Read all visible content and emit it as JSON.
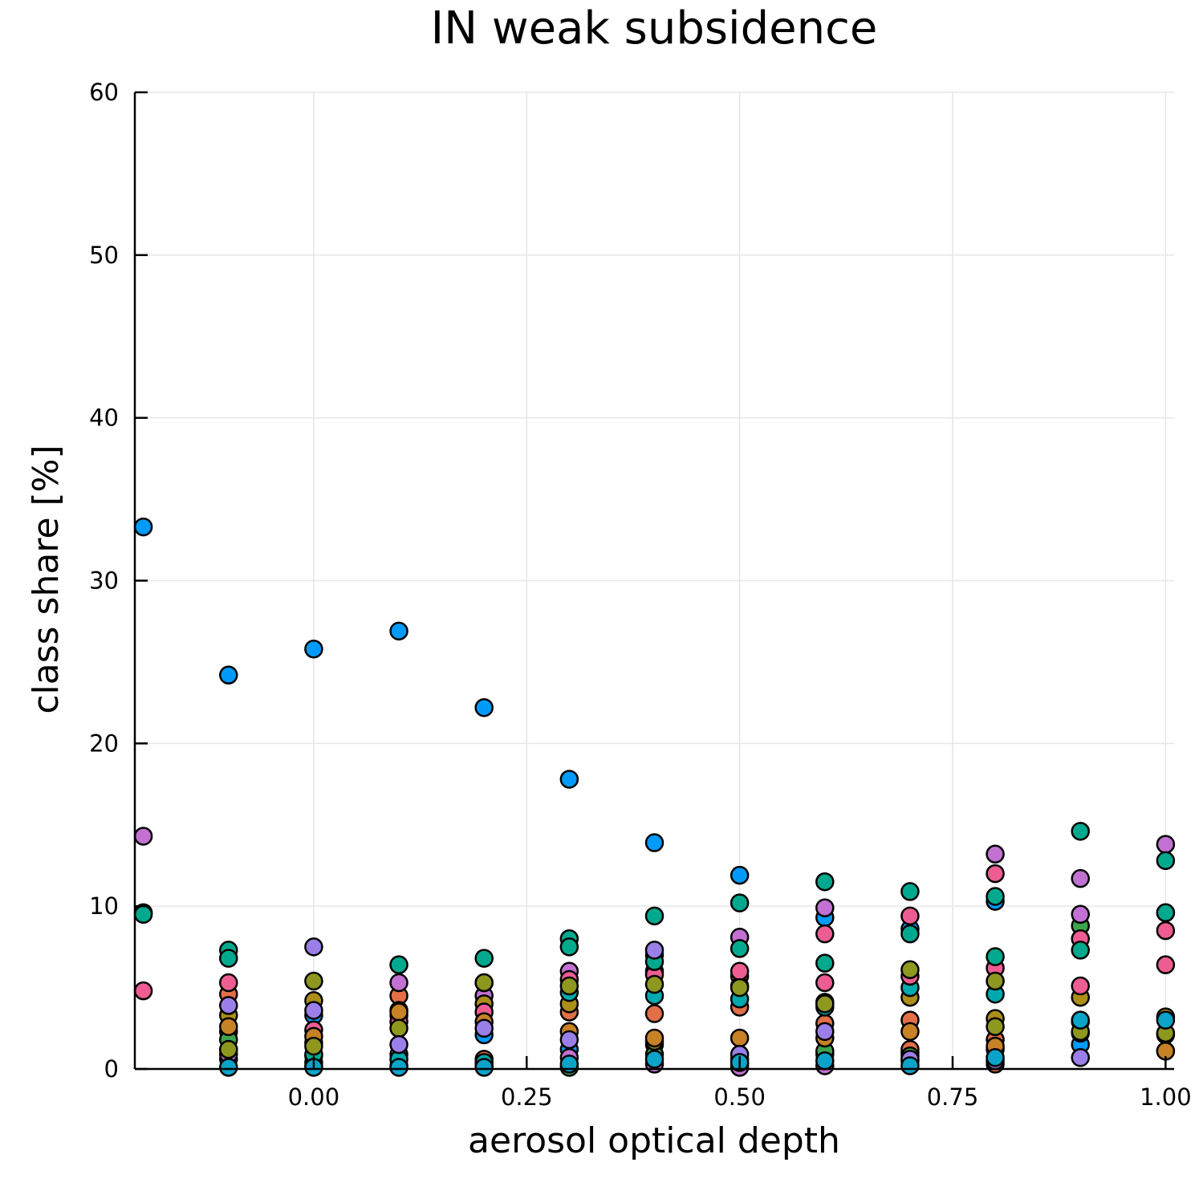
{
  "chart_data": {
    "type": "scatter",
    "title": "IN weak subsidence",
    "xlabel": "aerosol optical depth",
    "ylabel": "class share [%]",
    "xlim": [
      -0.21,
      1.01
    ],
    "ylim": [
      0,
      60
    ],
    "xticks": [
      0.0,
      0.25,
      0.5,
      0.75,
      1.0
    ],
    "xtick_labels": [
      "0.00",
      "0.25",
      "0.50",
      "0.75",
      "1.00"
    ],
    "yticks": [
      0,
      10,
      20,
      30,
      40,
      50,
      60
    ],
    "ytick_labels": [
      "0",
      "10",
      "20",
      "30",
      "40",
      "50",
      "60"
    ],
    "grid": true,
    "legend": "none",
    "series": [
      {
        "color": "#009AFA",
        "points": [
          [
            -0.2,
            33.3
          ],
          [
            -0.1,
            24.2
          ],
          [
            0.0,
            25.8
          ],
          [
            0.1,
            26.9
          ],
          [
            0.2,
            22.2
          ],
          [
            0.3,
            17.8
          ],
          [
            0.4,
            13.9
          ],
          [
            0.5,
            11.9
          ],
          [
            0.6,
            9.3
          ],
          [
            0.7,
            8.6
          ],
          [
            0.8,
            10.3
          ],
          [
            -0.1,
            0.6
          ],
          [
            0.0,
            3.3
          ],
          [
            0.1,
            0.2
          ],
          [
            0.2,
            2.1
          ],
          [
            0.3,
            1.2
          ],
          [
            0.4,
            1.5
          ],
          [
            0.5,
            0.6
          ],
          [
            0.6,
            0.9
          ],
          [
            0.7,
            1.0
          ],
          [
            0.9,
            1.5
          ]
        ]
      },
      {
        "color": "#E26F46",
        "points": [
          [
            -0.1,
            4.6
          ],
          [
            -0.1,
            2.3
          ],
          [
            0.0,
            1.6
          ],
          [
            0.1,
            4.5
          ],
          [
            0.1,
            3.3
          ],
          [
            0.2,
            0.6
          ],
          [
            0.3,
            3.5
          ],
          [
            0.4,
            3.4
          ],
          [
            0.4,
            6.0
          ],
          [
            0.5,
            3.8
          ],
          [
            0.5,
            5.7
          ],
          [
            0.6,
            2.8
          ],
          [
            0.7,
            3.0
          ],
          [
            0.7,
            1.2
          ],
          [
            0.8,
            0.3
          ],
          [
            0.8,
            1.8
          ],
          [
            1.0,
            1.1
          ]
        ]
      },
      {
        "color": "#3DA44D",
        "points": [
          [
            -0.1,
            1.8
          ],
          [
            0.0,
            0.8
          ],
          [
            0.1,
            0.9
          ],
          [
            0.2,
            0.2
          ],
          [
            0.3,
            0.1
          ],
          [
            0.4,
            0.9
          ],
          [
            0.5,
            0.3
          ],
          [
            0.6,
            1.1
          ],
          [
            0.7,
            0.8
          ],
          [
            0.8,
            1.2
          ],
          [
            0.9,
            8.8
          ],
          [
            1.0,
            2.1
          ]
        ]
      },
      {
        "color": "#C271D2",
        "points": [
          [
            -0.2,
            14.3
          ],
          [
            -0.1,
            0.9
          ],
          [
            0.0,
            0.4
          ],
          [
            0.1,
            5.3
          ],
          [
            0.2,
            4.5
          ],
          [
            0.3,
            6.0
          ],
          [
            0.3,
            0.7
          ],
          [
            0.4,
            0.3
          ],
          [
            0.5,
            8.1
          ],
          [
            0.5,
            0.1
          ],
          [
            0.6,
            9.9
          ],
          [
            0.6,
            0.2
          ],
          [
            0.7,
            0.5
          ],
          [
            0.8,
            13.2
          ],
          [
            0.9,
            11.7
          ],
          [
            0.9,
            9.5
          ],
          [
            1.0,
            13.8
          ]
        ]
      },
      {
        "color": "#AC8E18",
        "points": [
          [
            -0.1,
            3.3
          ],
          [
            0.0,
            4.2
          ],
          [
            0.1,
            3.6
          ],
          [
            0.2,
            4.0
          ],
          [
            0.3,
            4.0
          ],
          [
            0.4,
            1.7
          ],
          [
            0.5,
            5.1
          ],
          [
            0.6,
            4.1
          ],
          [
            0.7,
            4.4
          ],
          [
            0.8,
            3.1
          ],
          [
            0.9,
            4.4
          ],
          [
            1.0,
            3.2
          ]
        ]
      },
      {
        "color": "#00A9AD",
        "points": [
          [
            -0.2,
            9.6
          ],
          [
            -0.1,
            1.2
          ],
          [
            0.0,
            0.2
          ],
          [
            0.1,
            0.6
          ],
          [
            0.2,
            0.4
          ],
          [
            0.3,
            4.7
          ],
          [
            0.4,
            4.5
          ],
          [
            0.5,
            4.3
          ],
          [
            0.6,
            3.8
          ],
          [
            0.7,
            5.0
          ],
          [
            0.8,
            4.6
          ],
          [
            0.9,
            2.9
          ],
          [
            1.0,
            9.6
          ]
        ]
      },
      {
        "color": "#ED5D92",
        "points": [
          [
            -0.2,
            4.8
          ],
          [
            -0.1,
            5.3
          ],
          [
            0.0,
            2.4
          ],
          [
            0.1,
            2.9
          ],
          [
            0.2,
            3.5
          ],
          [
            0.3,
            5.5
          ],
          [
            0.4,
            7.0
          ],
          [
            0.4,
            5.8
          ],
          [
            0.5,
            6.0
          ],
          [
            0.6,
            8.3
          ],
          [
            0.6,
            5.3
          ],
          [
            0.7,
            9.4
          ],
          [
            0.7,
            5.7
          ],
          [
            0.8,
            12.0
          ],
          [
            0.8,
            6.2
          ],
          [
            0.9,
            8.0
          ],
          [
            0.9,
            5.1
          ],
          [
            1.0,
            8.5
          ],
          [
            1.0,
            6.4
          ]
        ]
      },
      {
        "color": "#C68225",
        "points": [
          [
            -0.1,
            2.6
          ],
          [
            0.0,
            2.0
          ],
          [
            0.1,
            3.5
          ],
          [
            0.2,
            2.9
          ],
          [
            0.3,
            2.3
          ],
          [
            0.4,
            1.9
          ],
          [
            0.5,
            1.9
          ],
          [
            0.6,
            1.9
          ],
          [
            0.7,
            2.3
          ],
          [
            0.8,
            1.4
          ],
          [
            0.9,
            2.2
          ],
          [
            1.0,
            1.1
          ]
        ]
      },
      {
        "color": "#00A98D",
        "points": [
          [
            -0.2,
            9.5
          ],
          [
            -0.1,
            7.3
          ],
          [
            -0.1,
            6.8
          ],
          [
            0.0,
            0.9
          ],
          [
            0.1,
            6.4
          ],
          [
            0.2,
            6.8
          ],
          [
            0.2,
            5.3
          ],
          [
            0.3,
            8.0
          ],
          [
            0.3,
            7.5
          ],
          [
            0.4,
            9.4
          ],
          [
            0.4,
            6.6
          ],
          [
            0.5,
            10.2
          ],
          [
            0.5,
            7.4
          ],
          [
            0.6,
            11.5
          ],
          [
            0.6,
            6.5
          ],
          [
            0.7,
            10.9
          ],
          [
            0.7,
            8.3
          ],
          [
            0.8,
            10.6
          ],
          [
            0.8,
            6.9
          ],
          [
            0.9,
            14.6
          ],
          [
            0.9,
            7.3
          ],
          [
            1.0,
            12.8
          ],
          [
            1.0,
            9.6
          ]
        ]
      },
      {
        "color": "#8E971E",
        "points": [
          [
            -0.1,
            1.2
          ],
          [
            0.0,
            5.4
          ],
          [
            0.0,
            1.4
          ],
          [
            0.1,
            2.5
          ],
          [
            0.2,
            5.3
          ],
          [
            0.3,
            5.1
          ],
          [
            0.4,
            5.2
          ],
          [
            0.5,
            5.0
          ],
          [
            0.6,
            4.0
          ],
          [
            0.7,
            6.1
          ],
          [
            0.8,
            5.4
          ],
          [
            0.8,
            2.6
          ],
          [
            0.9,
            2.3
          ],
          [
            1.0,
            2.2
          ]
        ]
      },
      {
        "color": "#9B7FE9",
        "points": [
          [
            -0.1,
            3.9
          ],
          [
            0.0,
            7.5
          ],
          [
            0.0,
            3.6
          ],
          [
            0.1,
            1.5
          ],
          [
            0.2,
            2.5
          ],
          [
            0.3,
            1.8
          ],
          [
            0.4,
            7.3
          ],
          [
            0.5,
            0.9
          ],
          [
            0.6,
            2.3
          ],
          [
            0.7,
            0.6
          ],
          [
            0.8,
            0.5
          ],
          [
            0.9,
            0.7
          ]
        ]
      },
      {
        "color": "#0BA3C8",
        "points": [
          [
            -0.1,
            0.1
          ],
          [
            0.0,
            0.1
          ],
          [
            0.1,
            0.1
          ],
          [
            0.2,
            0.1
          ],
          [
            0.3,
            0.3
          ],
          [
            0.4,
            0.6
          ],
          [
            0.5,
            0.4
          ],
          [
            0.6,
            0.5
          ],
          [
            0.7,
            0.2
          ],
          [
            0.8,
            0.7
          ],
          [
            0.9,
            3.0
          ],
          [
            1.0,
            3.0
          ]
        ]
      }
    ]
  }
}
